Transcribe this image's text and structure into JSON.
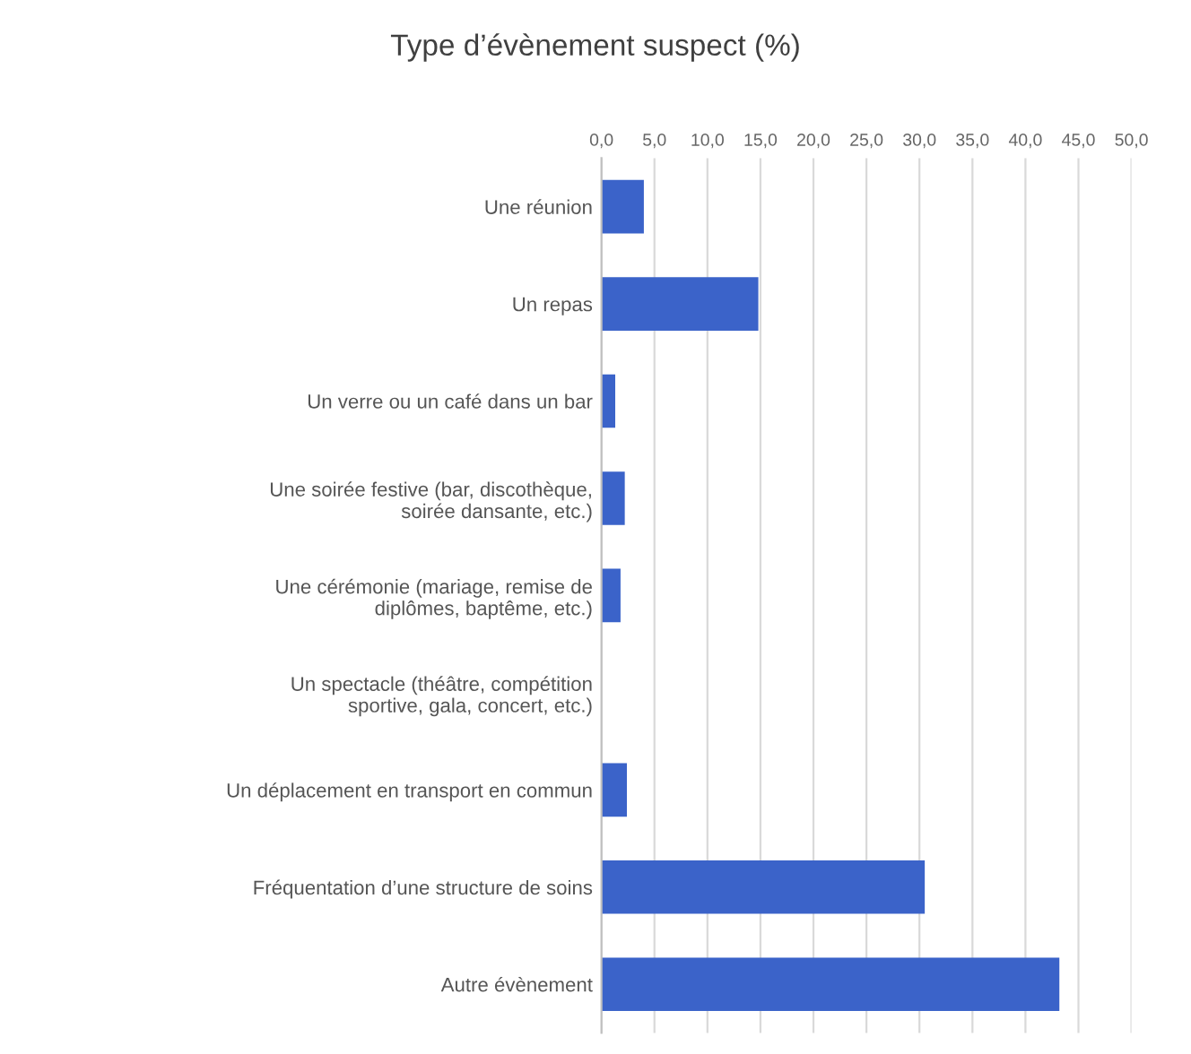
{
  "chart_data": {
    "type": "bar",
    "orientation": "horizontal",
    "title": "Type d’évènement suspect (%)",
    "categories": [
      "Une réunion",
      "Un repas",
      "Un verre ou un café dans un bar",
      "Une soirée festive (bar, discothèque,\nsoirée dansante, etc.)",
      "Une cérémonie (mariage, remise de\ndiplômes, baptême, etc.)",
      "Un spectacle (théâtre, compétition\nsportive, gala, concert, etc.)",
      "Un déplacement en transport en commun",
      "Fréquentation d’une structure de soins",
      "Autre évènement"
    ],
    "values": [
      4.0,
      14.8,
      1.3,
      2.2,
      1.8,
      0,
      2.4,
      30.5,
      43.2
    ],
    "color": "#3b63c9",
    "xlim": [
      0,
      50
    ],
    "xticks": [
      {
        "value": 0,
        "label": "0,0"
      },
      {
        "value": 5,
        "label": "5,0"
      },
      {
        "value": 10,
        "label": "10,0"
      },
      {
        "value": 15,
        "label": "15,0"
      },
      {
        "value": 20,
        "label": "20,0"
      },
      {
        "value": 25,
        "label": "25,0"
      },
      {
        "value": 30,
        "label": "30,0"
      },
      {
        "value": 35,
        "label": "35,0"
      },
      {
        "value": 40,
        "label": "40,0"
      },
      {
        "value": 45,
        "label": "45,0"
      },
      {
        "value": 50,
        "label": "50,0"
      }
    ],
    "grid": "x"
  }
}
